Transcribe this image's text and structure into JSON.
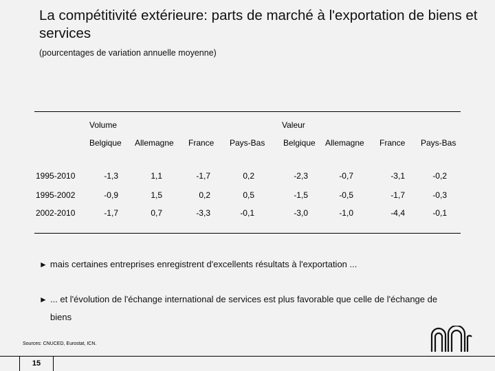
{
  "slide": {
    "title": "La compétitivité extérieure: parts de marché à l'exportation de biens et services",
    "subtitle": "(pourcentages de variation annuelle moyenne)"
  },
  "table": {
    "groups": [
      "Volume",
      "Valeur"
    ],
    "columns": [
      "Belgique",
      "Allemagne",
      "France",
      "Pays-Bas",
      "Belgique",
      "Allemagne",
      "France",
      "Pays-Bas"
    ],
    "rows": [
      {
        "label": "1995-2010",
        "values": [
          "-1,3",
          "1,1",
          "-1,7",
          "0,2",
          "-2,3",
          "-0,7",
          "-3,1",
          "-0,2"
        ]
      },
      {
        "label": "1995-2002",
        "values": [
          "-0,9",
          "1,5",
          "0,2",
          "0,5",
          "-1,5",
          "-0,5",
          "-1,7",
          "-0,3"
        ]
      },
      {
        "label": "2002-2010",
        "values": [
          "-1,7",
          "0,7",
          "-3,3",
          "-0,1",
          "-3,0",
          "-1,0",
          "-4,4",
          "-0,1"
        ]
      }
    ]
  },
  "bullets": [
    {
      "arrow": "►",
      "text": "mais certaines entreprises enregistrent d'excellents résultats à l'exportation ..."
    },
    {
      "arrow": "►",
      "line1": "... et l'évolution de l'échange international de services est plus favorable que celle de l'échange de",
      "line2": "biens"
    }
  ],
  "footer": {
    "sources": "Sources: CNUCED, Eurostat, ICN.",
    "page_number": "15"
  }
}
